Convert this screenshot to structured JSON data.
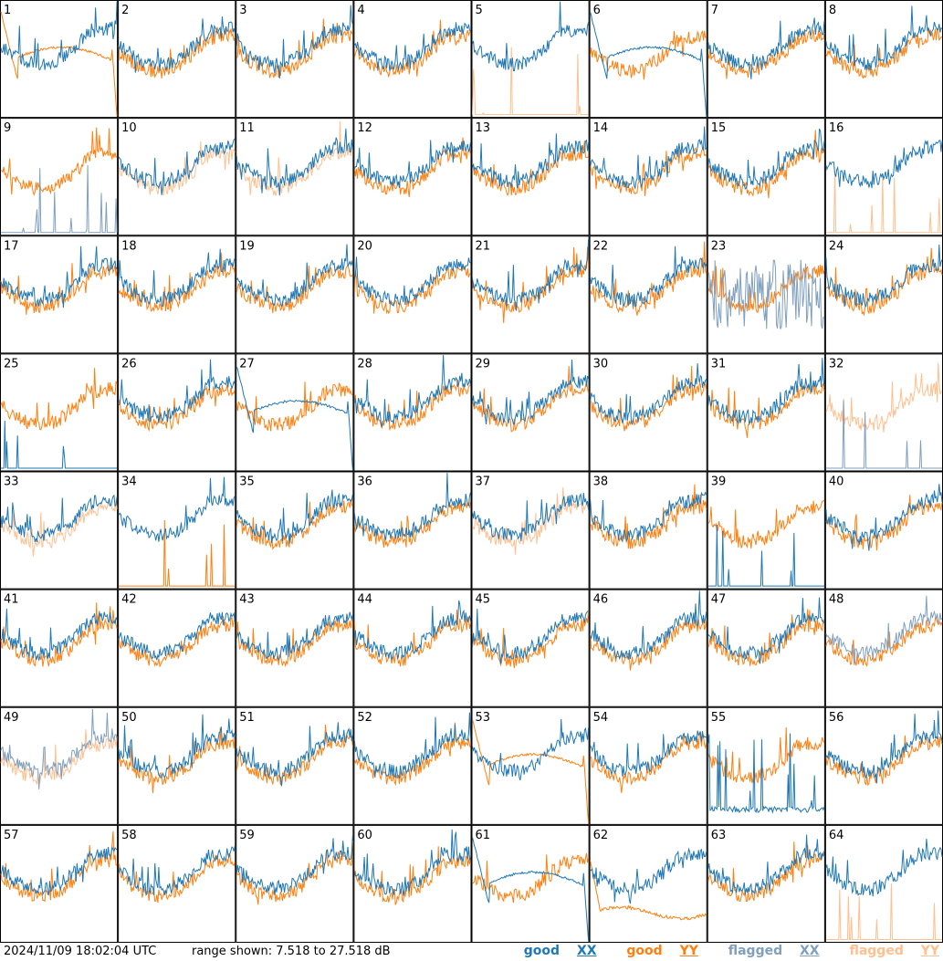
{
  "chart_data": {
    "type": "line",
    "layout": "8x8 small-multiples grid, one panel per antenna",
    "panels": [
      {
        "label": "1",
        "flags": {
          "xx": false,
          "yy": false
        },
        "note": "YY smooth bandpass shape, drops to floor at right"
      },
      {
        "label": "2",
        "flags": {
          "xx": false,
          "yy": false
        }
      },
      {
        "label": "3",
        "flags": {
          "xx": false,
          "yy": false
        }
      },
      {
        "label": "4",
        "flags": {
          "xx": false,
          "yy": false
        }
      },
      {
        "label": "5",
        "flags": {
          "xx": false,
          "yy": true
        },
        "note": "YY near floor with spikes"
      },
      {
        "label": "6",
        "flags": {
          "xx": false,
          "yy": false
        },
        "note": "XX smooth bandpass shape, drops at right"
      },
      {
        "label": "7",
        "flags": {
          "xx": false,
          "yy": false
        }
      },
      {
        "label": "8",
        "flags": {
          "xx": false,
          "yy": false
        }
      },
      {
        "label": "9",
        "flags": {
          "xx": true,
          "yy": false
        },
        "note": "XX flagged, mostly at floor with spikes"
      },
      {
        "label": "10",
        "flags": {
          "xx": false,
          "yy": true
        }
      },
      {
        "label": "11",
        "flags": {
          "xx": false,
          "yy": true
        }
      },
      {
        "label": "12",
        "flags": {
          "xx": false,
          "yy": false
        }
      },
      {
        "label": "13",
        "flags": {
          "xx": false,
          "yy": false
        }
      },
      {
        "label": "14",
        "flags": {
          "xx": false,
          "yy": false
        }
      },
      {
        "label": "15",
        "flags": {
          "xx": false,
          "yy": false
        }
      },
      {
        "label": "16",
        "flags": {
          "xx": false,
          "yy": true
        },
        "note": "YY near floor with spikes"
      },
      {
        "label": "17",
        "flags": {
          "xx": false,
          "yy": false
        }
      },
      {
        "label": "18",
        "flags": {
          "xx": false,
          "yy": false
        }
      },
      {
        "label": "19",
        "flags": {
          "xx": false,
          "yy": false
        }
      },
      {
        "label": "20",
        "flags": {
          "xx": false,
          "yy": false
        }
      },
      {
        "label": "21",
        "flags": {
          "xx": false,
          "yy": false
        }
      },
      {
        "label": "22",
        "flags": {
          "xx": false,
          "yy": false
        }
      },
      {
        "label": "23",
        "flags": {
          "xx": true,
          "yy": false
        },
        "note": "XX flagged, noisy"
      },
      {
        "label": "24",
        "flags": {
          "xx": false,
          "yy": false
        }
      },
      {
        "label": "25",
        "flags": {
          "xx": false,
          "yy": false
        },
        "note": "XX near floor with spikes"
      },
      {
        "label": "26",
        "flags": {
          "xx": false,
          "yy": false
        }
      },
      {
        "label": "27",
        "flags": {
          "xx": false,
          "yy": false
        },
        "note": "XX smooth bandpass shape"
      },
      {
        "label": "28",
        "flags": {
          "xx": false,
          "yy": false
        }
      },
      {
        "label": "29",
        "flags": {
          "xx": false,
          "yy": false
        }
      },
      {
        "label": "30",
        "flags": {
          "xx": false,
          "yy": false
        }
      },
      {
        "label": "31",
        "flags": {
          "xx": false,
          "yy": false
        }
      },
      {
        "label": "32",
        "flags": {
          "xx": true,
          "yy": true
        },
        "note": "XX near floor, YY flagged"
      },
      {
        "label": "33",
        "flags": {
          "xx": false,
          "yy": true
        }
      },
      {
        "label": "34",
        "flags": {
          "xx": false,
          "yy": false
        },
        "note": "YY near floor with spikes"
      },
      {
        "label": "35",
        "flags": {
          "xx": false,
          "yy": false
        }
      },
      {
        "label": "36",
        "flags": {
          "xx": false,
          "yy": false
        }
      },
      {
        "label": "37",
        "flags": {
          "xx": false,
          "yy": true
        }
      },
      {
        "label": "38",
        "flags": {
          "xx": false,
          "yy": false
        }
      },
      {
        "label": "39",
        "flags": {
          "xx": false,
          "yy": false
        },
        "note": "XX near floor with spikes"
      },
      {
        "label": "40",
        "flags": {
          "xx": false,
          "yy": false
        }
      },
      {
        "label": "41",
        "flags": {
          "xx": false,
          "yy": false
        }
      },
      {
        "label": "42",
        "flags": {
          "xx": false,
          "yy": false
        }
      },
      {
        "label": "43",
        "flags": {
          "xx": false,
          "yy": false
        }
      },
      {
        "label": "44",
        "flags": {
          "xx": false,
          "yy": false
        }
      },
      {
        "label": "45",
        "flags": {
          "xx": false,
          "yy": false
        }
      },
      {
        "label": "46",
        "flags": {
          "xx": false,
          "yy": false
        }
      },
      {
        "label": "47",
        "flags": {
          "xx": false,
          "yy": false
        }
      },
      {
        "label": "48",
        "flags": {
          "xx": true,
          "yy": false
        }
      },
      {
        "label": "49",
        "flags": {
          "xx": true,
          "yy": true
        }
      },
      {
        "label": "50",
        "flags": {
          "xx": false,
          "yy": false
        }
      },
      {
        "label": "51",
        "flags": {
          "xx": false,
          "yy": false
        }
      },
      {
        "label": "52",
        "flags": {
          "xx": false,
          "yy": false
        }
      },
      {
        "label": "53",
        "flags": {
          "xx": false,
          "yy": false
        },
        "note": "YY smooth bandpass shape, drops at right"
      },
      {
        "label": "54",
        "flags": {
          "xx": false,
          "yy": false
        }
      },
      {
        "label": "55",
        "flags": {
          "xx": false,
          "yy": false
        },
        "note": "XX low and spiky"
      },
      {
        "label": "56",
        "flags": {
          "xx": false,
          "yy": false
        }
      },
      {
        "label": "57",
        "flags": {
          "xx": false,
          "yy": false
        }
      },
      {
        "label": "58",
        "flags": {
          "xx": false,
          "yy": false
        }
      },
      {
        "label": "59",
        "flags": {
          "xx": false,
          "yy": false
        }
      },
      {
        "label": "60",
        "flags": {
          "xx": false,
          "yy": false
        }
      },
      {
        "label": "61",
        "flags": {
          "xx": false,
          "yy": false
        },
        "note": "XX smooth bandpass shape"
      },
      {
        "label": "62",
        "flags": {
          "xx": false,
          "yy": false
        },
        "note": "YY low plateau"
      },
      {
        "label": "63",
        "flags": {
          "xx": false,
          "yy": false
        }
      },
      {
        "label": "64",
        "flags": {
          "xx": false,
          "yy": true
        },
        "note": "YY near floor with spikes"
      }
    ],
    "ylim": [
      7.518,
      27.518
    ],
    "series_colors": {
      "good_xx": "#1f77b4",
      "good_yy": "#ff7f0e",
      "flagged_xx": "#7f9fbf",
      "flagged_yy": "#ffbf8f"
    }
  },
  "footer": {
    "timestamp": "2024/11/09 18:02:04 UTC",
    "range": "range shown: 7.518 to 27.518 dB",
    "legend": {
      "good_xx_word": "good",
      "good_xx_code": "XX",
      "good_yy_word": "good",
      "good_yy_code": "YY",
      "flagged_xx_word": "flagged",
      "flagged_xx_code": "XX",
      "flagged_yy_word": "flagged",
      "flagged_yy_code": "YY"
    }
  }
}
